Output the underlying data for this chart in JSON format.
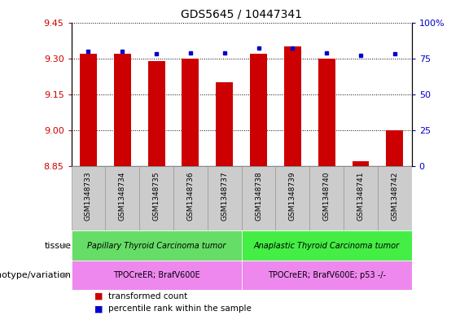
{
  "title": "GDS5645 / 10447341",
  "samples": [
    "GSM1348733",
    "GSM1348734",
    "GSM1348735",
    "GSM1348736",
    "GSM1348737",
    "GSM1348738",
    "GSM1348739",
    "GSM1348740",
    "GSM1348741",
    "GSM1348742"
  ],
  "transformed_count": [
    9.32,
    9.32,
    9.29,
    9.3,
    9.2,
    9.32,
    9.35,
    9.3,
    8.87,
    9.0
  ],
  "percentile_rank": [
    80,
    80,
    78,
    79,
    79,
    82,
    82,
    79,
    77,
    78
  ],
  "ylim_left": [
    8.85,
    9.45
  ],
  "ylim_right": [
    0,
    100
  ],
  "yticks_left": [
    8.85,
    9.0,
    9.15,
    9.3,
    9.45
  ],
  "yticks_right": [
    0,
    25,
    50,
    75,
    100
  ],
  "ytick_labels_right": [
    "0",
    "25",
    "50",
    "75",
    "100%"
  ],
  "bar_color": "#cc0000",
  "dot_color": "#0000cc",
  "tissue_groups": [
    {
      "label": "Papillary Thyroid Carcinoma tumor",
      "start": 0,
      "end": 5,
      "color": "#66dd66"
    },
    {
      "label": "Anaplastic Thyroid Carcinoma tumor",
      "start": 5,
      "end": 10,
      "color": "#44ee44"
    }
  ],
  "genotype_groups": [
    {
      "label": "TPOCreER; BrafV600E",
      "start": 0,
      "end": 5,
      "color": "#ee88ee"
    },
    {
      "label": "TPOCreER; BrafV600E; p53 -/-",
      "start": 5,
      "end": 10,
      "color": "#ee88ee"
    }
  ],
  "tissue_label": "tissue",
  "genotype_label": "genotype/variation",
  "legend_items": [
    {
      "color": "#cc0000",
      "label": "transformed count"
    },
    {
      "color": "#0000cc",
      "label": "percentile rank within the sample"
    }
  ],
  "bar_width": 0.5,
  "left_tick_color": "#cc0000",
  "right_tick_color": "#0000cc",
  "sample_box_color": "#cccccc",
  "sample_box_edge": "#999999"
}
